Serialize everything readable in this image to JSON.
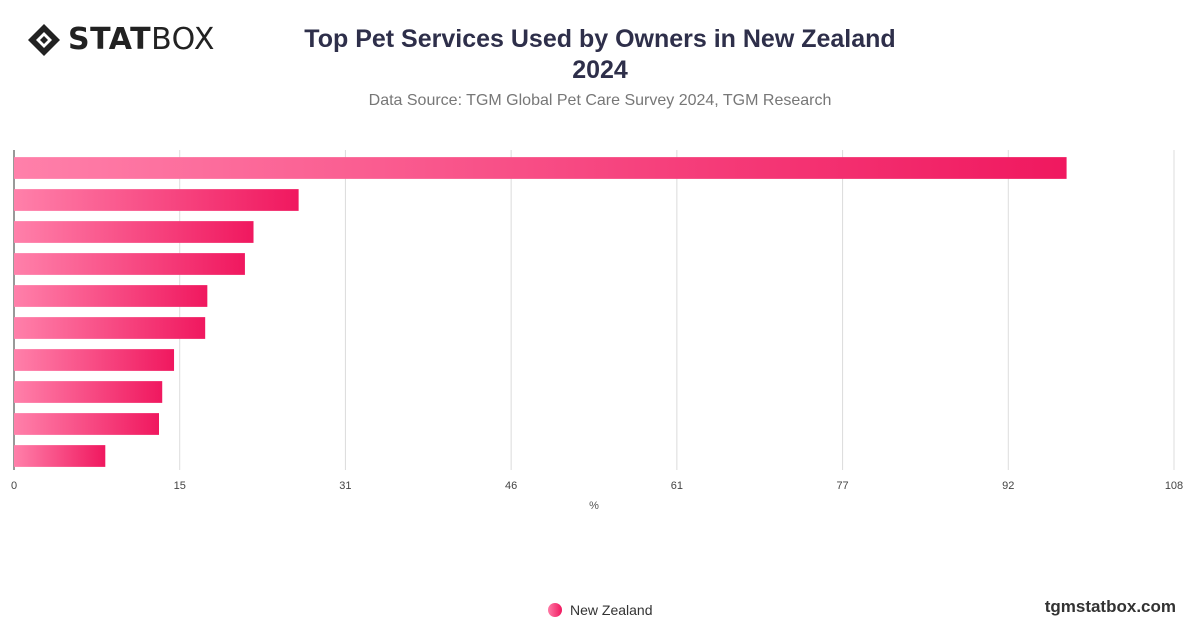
{
  "brand": {
    "logo_bold": "STAT",
    "logo_light": "BOX",
    "site": "tgmstatbox.com"
  },
  "chart_data": {
    "type": "bar",
    "orientation": "horizontal",
    "title": "Top Pet Services Used by Owners in New Zealand",
    "title_year": "2024",
    "subtitle": "Data Source: TGM Global Pet Care Survey 2024, TGM Research",
    "xlabel": "%",
    "xlim": [
      0,
      108
    ],
    "xticks": [
      "0",
      "15",
      "31",
      "46",
      "61",
      "77",
      "92",
      "108"
    ],
    "grid": true,
    "legend_position": "bottom",
    "categories": [
      "",
      "",
      "",
      "",
      "",
      "",
      "",
      "",
      "",
      ""
    ],
    "series": [
      {
        "name": "New Zealand",
        "values": [
          98,
          26.5,
          22.3,
          21.5,
          18,
          17.8,
          14.9,
          13.8,
          13.5,
          8.5
        ]
      }
    ],
    "colors": {
      "bar_start": "#ff80aa",
      "bar_end": "#f0185f"
    }
  }
}
